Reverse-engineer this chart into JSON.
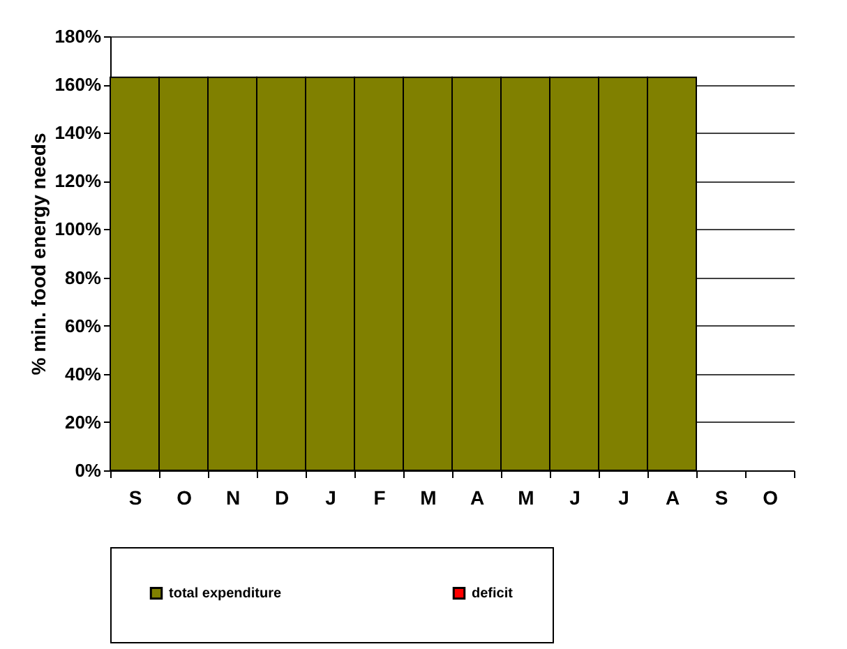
{
  "chart_data": {
    "type": "bar",
    "ylabel": "% min. food energy needs",
    "categories": [
      "S",
      "O",
      "N",
      "D",
      "J",
      "F",
      "M",
      "A",
      "M",
      "J",
      "J",
      "A",
      "S",
      "O"
    ],
    "series": [
      {
        "name": "total expenditure",
        "color": "#808000",
        "values": [
          163,
          163,
          163,
          163,
          163,
          163,
          163,
          163,
          163,
          163,
          163,
          163,
          null,
          null
        ]
      },
      {
        "name": "deficit",
        "color": "#ff0000",
        "values": [
          null,
          null,
          null,
          null,
          null,
          null,
          null,
          null,
          null,
          null,
          null,
          null,
          null,
          null
        ]
      }
    ],
    "ylim": [
      0,
      180
    ],
    "yticks": [
      {
        "value": 0,
        "label": "0%"
      },
      {
        "value": 20,
        "label": "20%"
      },
      {
        "value": 40,
        "label": "40%"
      },
      {
        "value": 60,
        "label": "60%"
      },
      {
        "value": 80,
        "label": "80%"
      },
      {
        "value": 100,
        "label": "100%"
      },
      {
        "value": 120,
        "label": "120%"
      },
      {
        "value": 140,
        "label": "140%"
      },
      {
        "value": 160,
        "label": "160%"
      },
      {
        "value": 180,
        "label": "180%"
      }
    ],
    "grid": "y",
    "legend": "bottom"
  }
}
